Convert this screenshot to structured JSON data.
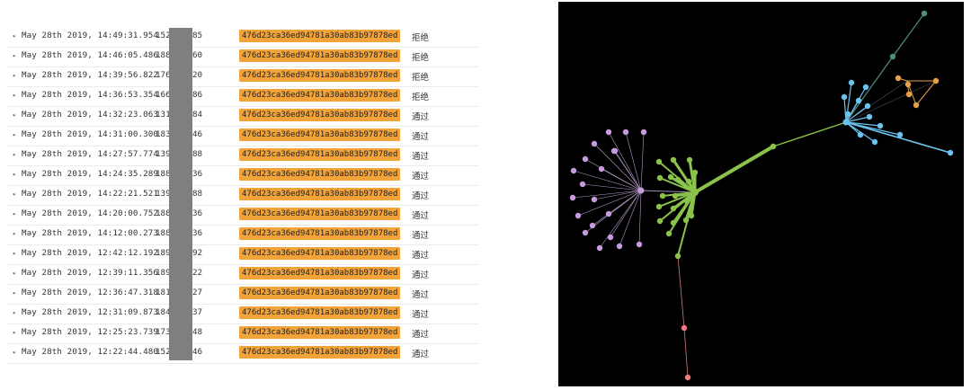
{
  "log": {
    "rows": [
      {
        "time": "May 28th 2019, 14:49:31.954",
        "id_left": "1529",
        "id_right": "85",
        "hash": "476d23ca36ed94781a30ab83b97878ed",
        "status": "拒绝"
      },
      {
        "time": "May 28th 2019, 14:46:05.486",
        "id_left": "1889",
        "id_right": "60",
        "hash": "476d23ca36ed94781a30ab83b97878ed",
        "status": "拒绝"
      },
      {
        "time": "May 28th 2019, 14:39:56.822",
        "id_left": "1769",
        "id_right": "20",
        "hash": "476d23ca36ed94781a30ab83b97878ed",
        "status": "拒绝"
      },
      {
        "time": "May 28th 2019, 14:36:53.354",
        "id_left": "1660",
        "id_right": "86",
        "hash": "476d23ca36ed94781a30ab83b97878ed",
        "status": "拒绝"
      },
      {
        "time": "May 28th 2019, 14:32:23.063",
        "id_left": "1310",
        "id_right": "84",
        "hash": "476d23ca36ed94781a30ab83b97878ed",
        "status": "通过"
      },
      {
        "time": "May 28th 2019, 14:31:00.300",
        "id_left": "1839",
        "id_right": "46",
        "hash": "476d23ca36ed94781a30ab83b97878ed",
        "status": "通过"
      },
      {
        "time": "May 28th 2019, 14:27:57.774",
        "id_left": "1391",
        "id_right": "88",
        "hash": "476d23ca36ed94781a30ab83b97878ed",
        "status": "通过"
      },
      {
        "time": "May 28th 2019, 14:24:35.289",
        "id_left": "1885",
        "id_right": "36",
        "hash": "476d23ca36ed94781a30ab83b97878ed",
        "status": "通过"
      },
      {
        "time": "May 28th 2019, 14:22:21.521",
        "id_left": "1391",
        "id_right": "88",
        "hash": "476d23ca36ed94781a30ab83b97878ed",
        "status": "通过"
      },
      {
        "time": "May 28th 2019, 14:20:00.752",
        "id_left": "1885",
        "id_right": "36",
        "hash": "476d23ca36ed94781a30ab83b97878ed",
        "status": "通过"
      },
      {
        "time": "May 28th 2019, 14:12:00.273",
        "id_left": "1885",
        "id_right": "36",
        "hash": "476d23ca36ed94781a30ab83b97878ed",
        "status": "通过"
      },
      {
        "time": "May 28th 2019, 12:42:12.192",
        "id_left": "1891",
        "id_right": "92",
        "hash": "476d23ca36ed94781a30ab83b97878ed",
        "status": "通过"
      },
      {
        "time": "May 28th 2019, 12:39:11.356",
        "id_left": "1899",
        "id_right": "22",
        "hash": "476d23ca36ed94781a30ab83b97878ed",
        "status": "通过"
      },
      {
        "time": "May 28th 2019, 12:36:47.318",
        "id_left": "1811",
        "id_right": "27",
        "hash": "476d23ca36ed94781a30ab83b97878ed",
        "status": "通过"
      },
      {
        "time": "May 28th 2019, 12:31:09.873",
        "id_left": "1840",
        "id_right": "37",
        "hash": "476d23ca36ed94781a30ab83b97878ed",
        "status": "通过"
      },
      {
        "time": "May 28th 2019, 12:25:23.739",
        "id_left": "1739",
        "id_right": "48",
        "hash": "476d23ca36ed94781a30ab83b97878ed",
        "status": "通过"
      },
      {
        "time": "May 28th 2019, 12:22:44.480",
        "id_left": "1521",
        "id_right": "46",
        "hash": "476d23ca36ed94781a30ab83b97878ed",
        "status": "通过"
      }
    ],
    "colors": {
      "hash_highlight": "#f2a33a",
      "redaction": "#7f7f7f"
    }
  },
  "graph": {
    "background": "#000000",
    "cluster_colors": {
      "purple": "#c79be0",
      "green": "#8bc34a",
      "blue": "#6cc3ee",
      "orange": "#e6a04a",
      "teal": "#4f8f80",
      "red": "#f07a85"
    }
  }
}
